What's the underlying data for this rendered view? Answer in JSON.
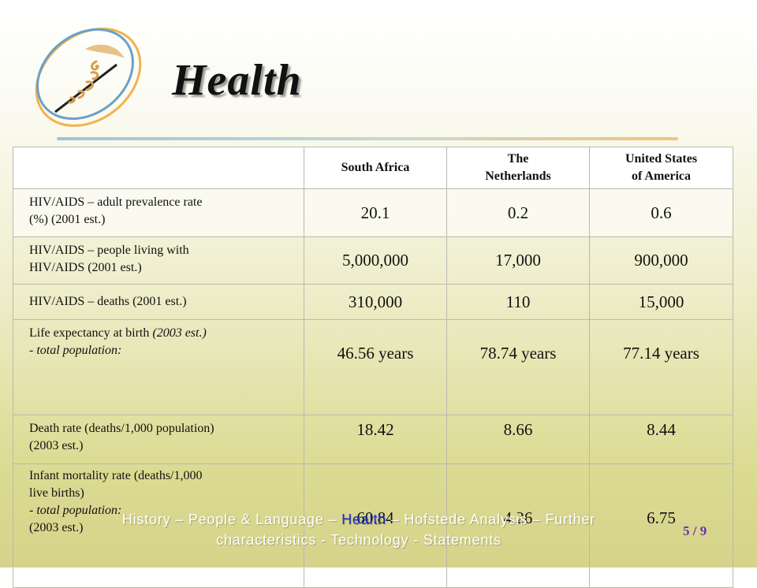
{
  "title": "Health",
  "table": {
    "headers": [
      "",
      {
        "line1": "South Africa",
        "line2": ""
      },
      {
        "line1": "The",
        "line2": "Netherlands"
      },
      {
        "line1": "United States",
        "line2": "of America"
      }
    ],
    "rows": [
      {
        "label": [
          "HIV/AIDS – adult prevalence rate",
          "(%) (2001 est.)"
        ],
        "values": [
          "20.1",
          "0.2",
          "0.6"
        ]
      },
      {
        "label": [
          "HIV/AIDS – people living with",
          "HIV/AIDS (2001 est.)"
        ],
        "values": [
          "5,000,000",
          "17,000",
          "900,000"
        ]
      },
      {
        "label": [
          "HIV/AIDS – deaths (2001 est.)"
        ],
        "values": [
          "310,000",
          "110",
          "15,000"
        ]
      },
      {
        "label": [
          "Life expectancy at birth",
          "(2003 est.)",
          "- ",
          "total population:"
        ],
        "values": [
          "46.56 years",
          "78.74 years",
          "77.14 years"
        ]
      },
      {
        "label": [
          "Death rate (deaths/1,000 population)",
          "(2003 est.)"
        ],
        "values": [
          "18.42",
          "8.66",
          "8.44"
        ]
      },
      {
        "label": [
          "Infant mortality rate (deaths/1,000",
          "live births)",
          "- ",
          "total population:",
          "(2003 est.)"
        ],
        "values": [
          "60.84",
          "4.26",
          "6.75"
        ]
      }
    ]
  },
  "nav": {
    "history": "History",
    "sep1": " – ",
    "people": "People & Language",
    "sep2": " – ",
    "health": "Health",
    "sep3": " – ",
    "hofstede": "Hofstede Analysis",
    "sep4": " – ",
    "further": "Further characteristics",
    "sep5": " - ",
    "technology": "Technology",
    "sep6": " - ",
    "statements": "Statements"
  },
  "page": {
    "current": "5",
    "sep": " / ",
    "total": "9"
  },
  "colors": {
    "accent_active": "#1c2bd8",
    "pager": "#6d2fb0",
    "nav_text": "#ffffff"
  }
}
